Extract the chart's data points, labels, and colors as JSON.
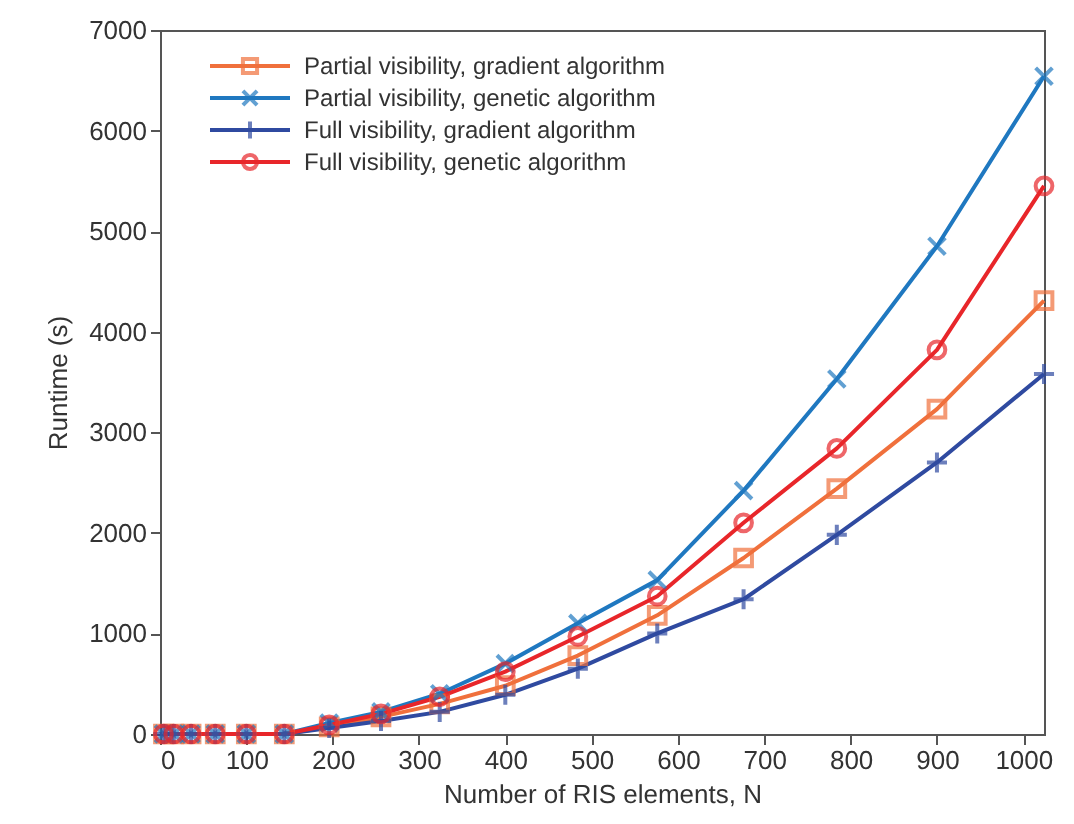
{
  "chart_data": {
    "type": "line",
    "xlabel": "Number of RIS elements, N",
    "ylabel": "Runtime (s)",
    "x": [
      4,
      16,
      36,
      64,
      100,
      144,
      196,
      256,
      324,
      400,
      484,
      576,
      676,
      784,
      900,
      1024
    ],
    "xlim": [
      0,
      1024
    ],
    "xticks": [
      0,
      100,
      200,
      300,
      400,
      500,
      600,
      700,
      800,
      900,
      1000
    ],
    "ylim": [
      0,
      7000
    ],
    "yticks": [
      0,
      1000,
      2000,
      3000,
      4000,
      5000,
      6000,
      7000
    ],
    "grid": false,
    "legend": "top left",
    "line_style": "solid",
    "series": [
      {
        "name": "Partial visibility, gradient algorithm",
        "color": "#f0703c",
        "marker": "square",
        "values": [
          0,
          0,
          0,
          0,
          0,
          0,
          70,
          170,
          300,
          480,
          780,
          1180,
          1750,
          2440,
          3230,
          4310
        ]
      },
      {
        "name": "Partial visibility, genetic algorithm",
        "color": "#1f78c0",
        "marker": "cross",
        "values": [
          0,
          0,
          0,
          0,
          0,
          0,
          110,
          220,
          400,
          700,
          1100,
          1530,
          2420,
          3530,
          4850,
          6540
        ]
      },
      {
        "name": "Full visibility, gradient algorithm",
        "color": "#2f4aa0",
        "marker": "plus",
        "values": [
          0,
          0,
          0,
          0,
          0,
          0,
          60,
          130,
          220,
          390,
          650,
          1000,
          1340,
          1980,
          2700,
          3580
        ]
      },
      {
        "name": "Full visibility, genetic algorithm",
        "color": "#e8262a",
        "marker": "circle",
        "values": [
          0,
          0,
          0,
          0,
          0,
          0,
          90,
          200,
          370,
          620,
          970,
          1370,
          2100,
          2840,
          3820,
          5450
        ]
      }
    ]
  }
}
